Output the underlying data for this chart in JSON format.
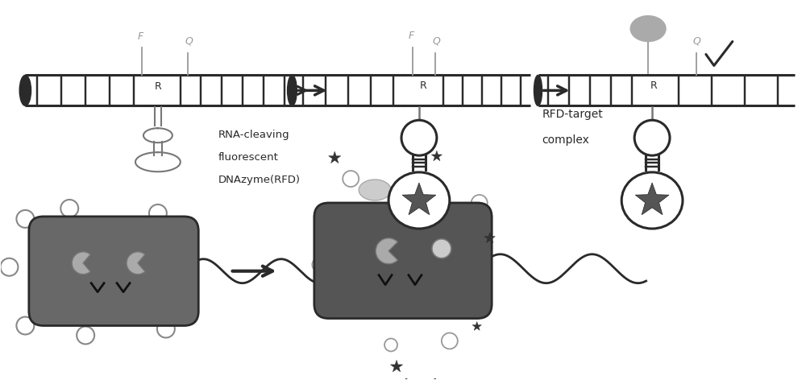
{
  "bg_color": "#ffffff",
  "dark_gray": "#2a2a2a",
  "mid_gray": "#777777",
  "light_gray": "#aaaaaa",
  "very_light_gray": "#cccccc",
  "label_color": "#999999",
  "rna_cleaving_text": [
    "RNA-cleaving",
    "fluorescent",
    "DNAzyme(RFD)"
  ],
  "rfd_target_text": [
    "RFD-target",
    "complex"
  ],
  "fig_width": 10.0,
  "fig_height": 4.72,
  "dpi": 100
}
